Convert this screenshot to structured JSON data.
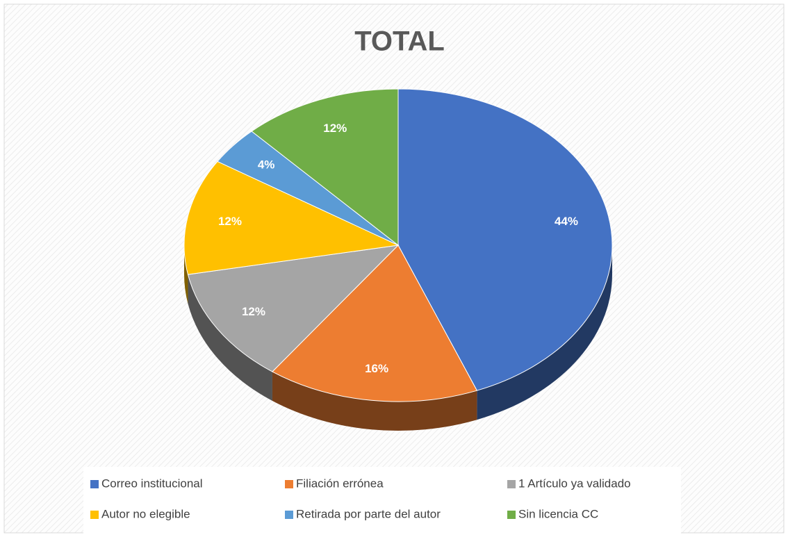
{
  "chart_data": {
    "type": "pie",
    "title": "TOTAL",
    "categories": [
      "Correo institucional",
      "Filiación errónea",
      "1 Artículo ya validado",
      "Autor no elegible",
      "Retirada por parte del autor",
      "Sin licencia CC"
    ],
    "values": [
      44,
      16,
      12,
      12,
      4,
      12
    ],
    "value_labels": [
      "44%",
      "16%",
      "12%",
      "12%",
      "4%",
      "12%"
    ],
    "colors": [
      "#4472c4",
      "#ed7d31",
      "#a5a5a5",
      "#ffc000",
      "#5b9bd5",
      "#70ad47"
    ],
    "legend": "bottom"
  }
}
